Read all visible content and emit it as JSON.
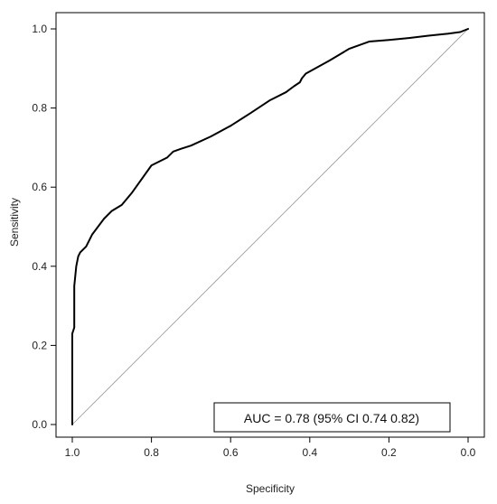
{
  "chart_data": {
    "type": "line",
    "title": "",
    "xlabel": "Specificity",
    "ylabel": "Sensitivity",
    "xlim": [
      1.0,
      0.0
    ],
    "ylim": [
      0.0,
      1.0
    ],
    "x_reversed": true,
    "grid": false,
    "legend": "none",
    "x_ticks": [
      "1.0",
      "0.8",
      "0.6",
      "0.4",
      "0.2",
      "0.0"
    ],
    "y_ticks": [
      "0.0",
      "0.2",
      "0.4",
      "0.6",
      "0.8",
      "1.0"
    ],
    "series": [
      {
        "color": "#000000",
        "x": [
          1.0,
          1.0,
          0.995,
          0.995,
          0.99,
          0.985,
          0.98,
          0.965,
          0.95,
          0.92,
          0.9,
          0.875,
          0.85,
          0.8,
          0.76,
          0.745,
          0.725,
          0.7,
          0.65,
          0.6,
          0.55,
          0.5,
          0.46,
          0.44,
          0.425,
          0.42,
          0.41,
          0.35,
          0.3,
          0.25,
          0.2,
          0.15,
          0.1,
          0.05,
          0.02,
          0.0
        ],
        "y": [
          0.0,
          0.23,
          0.245,
          0.35,
          0.4,
          0.425,
          0.435,
          0.45,
          0.48,
          0.52,
          0.54,
          0.555,
          0.585,
          0.655,
          0.675,
          0.69,
          0.697,
          0.705,
          0.728,
          0.755,
          0.787,
          0.82,
          0.84,
          0.855,
          0.865,
          0.875,
          0.887,
          0.92,
          0.95,
          0.968,
          0.972,
          0.977,
          0.983,
          0.988,
          0.992,
          1.0
        ]
      }
    ],
    "reference_line": {
      "x": [
        1.0,
        0.0
      ],
      "y": [
        0.0,
        1.0
      ],
      "color": "#999999"
    },
    "annotation": "AUC = 0.78 (95% CI 0.74 0.82)"
  }
}
